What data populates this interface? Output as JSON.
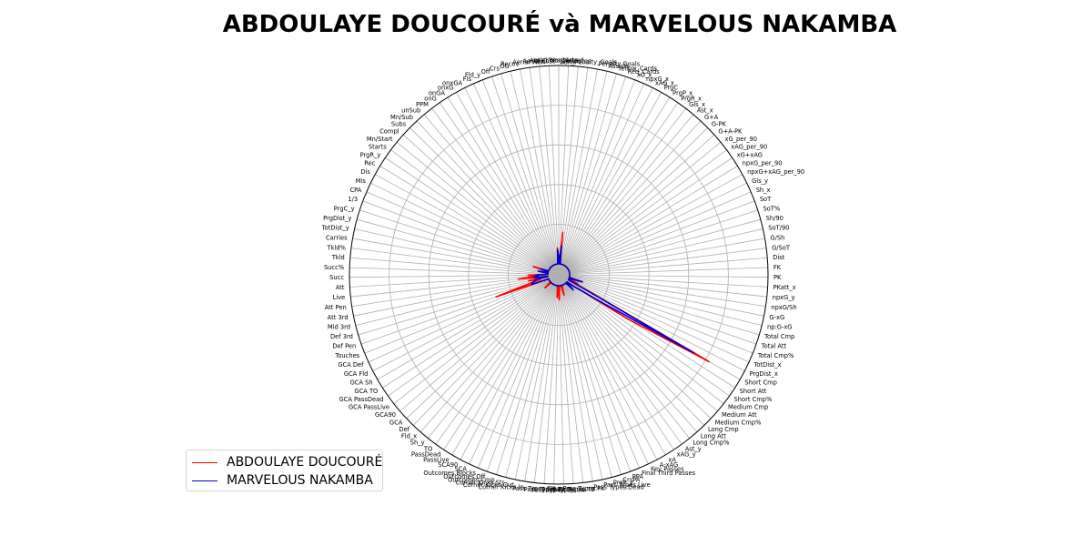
{
  "chart_data": {
    "type": "radar",
    "title": "ABDOULAYE DOUCOURÉ và MARVELOUS NAKAMBA",
    "grid": true,
    "legend_position": "lower-left",
    "categories": [
      "matches_played",
      "starts",
      "minutes",
      "non_Penalty_Goals",
      "Penalty Goals",
      "Assists",
      "Yellow_Cards",
      "Red_Cards",
      "xG_x",
      "npxG_x",
      "xAG_x",
      "PrgC",
      "PrgP_x",
      "PrgR_x",
      "Gls_x",
      "Ast_x",
      "G+A",
      "G-PK",
      "G+A-PK",
      "xG_per_90",
      "xAG_per_90",
      "xG+xAG",
      "npxG_per_90",
      "npxG+xAG_per_90",
      "Gls_y",
      "Sh_x",
      "SoT",
      "SoT%",
      "Sh/90",
      "SoT/90",
      "G/Sh",
      "G/SoT",
      "Dist",
      "FK",
      "PK",
      "PKatt_x",
      "npxG_y",
      "npxG/Sh",
      "G-xG",
      "np:G-xG",
      "Total Cmp",
      "Total Att",
      "Total Cmp%",
      "TotDist_x",
      "PrgDist_x",
      "Short Cmp",
      "Short Att",
      "Short Cmp%",
      "Medium Cmp",
      "Medium Att",
      "Medium Cmp%",
      "Long Cmp",
      "Long Att",
      "Long Cmp%",
      "Ast_y",
      "xAG_y",
      "xA",
      "A-xAG",
      "Key Passes",
      "Final Third Passes",
      "PPA",
      "CrsPA",
      "PrgP_y",
      "Pass Types.Live",
      "Pass Types.Dead",
      "Pass Types.FK",
      "Pass Types.TB",
      "Pass Types.Sw",
      "Pass Types.Crs",
      "Pass Types.TI",
      "Pass Types.CK",
      "Corner Kicks.In",
      "Corner Kicks.Out",
      "Corner Kicks.Str",
      "Outcomes.Cmp",
      "Outcomes.Off",
      "Outcomes.Blocks",
      "SCA",
      "SCA90",
      "PassLive",
      "PassDead",
      "TO",
      "Sh_y",
      "Fld_x",
      "Def",
      "GCA",
      "GCA90",
      "GCA PassLive",
      "GCA PassDead",
      "GCA TO",
      "GCA Sh",
      "GCA Fld",
      "GCA Def",
      "Touches",
      "Def Pen",
      "Def 3rd",
      "Mid 3rd",
      "Att 3rd",
      "Att Pen",
      "Live",
      "Att",
      "Succ",
      "Succ%",
      "Tkld",
      "Tkld%",
      "Carries",
      "TotDist_y",
      "PrgDist_y",
      "PrgC_y",
      "1/3",
      "CPA",
      "Mis",
      "Dis",
      "Rec",
      "PrgR_y",
      "Starts",
      "Mn/Start",
      "Compl",
      "Subs",
      "Mn/Sub",
      "unSub",
      "PPM",
      "onG",
      "onGA",
      "onxG",
      "onxGA",
      "Fls",
      "Fld_y",
      "Off",
      "Crs",
      "OG",
      "Recov",
      "Aerial Won",
      "Aerial Lost",
      "Aerial Won%"
    ],
    "series": [
      {
        "name": "ABDOULAYE DOUCOURÉ",
        "color": "#ff0000",
        "values": {
          "matches_played": 0.03,
          "minutes": 0.16,
          "Total Cmp": 0.05,
          "TotDist_x": 0.05,
          "PrgDist_x": 0.05,
          "Short Cmp": 0.82,
          "Short Att": 0.35,
          "Short Cmp%": 0.08,
          "Medium Cmp": 0.03,
          "Long Cmp": 0.03,
          "PrgP_y": 0.05,
          "Pass Types.Sw": 0.07,
          "Pass Types.TI": 0.06,
          "GCA": 0.04,
          "Def Pen": 0.28,
          "Def 3rd": 0.1,
          "Mid 3rd": 0.04,
          "Att 3rd": 0.1,
          "Live": 0.15,
          "Att": 0.05,
          "Succ": 0.1,
          "PrgC_y": 0.08,
          "Aerial Won%": 0.08
        }
      },
      {
        "name": "MARVELOUS NAKAMBA",
        "color": "#0000cd",
        "values": {
          "matches_played": 0.04,
          "minutes": 0.09,
          "Total Cmp": 0.07,
          "Short Cmp": 0.73,
          "Short Att": 0.2,
          "Short Cmp%": 0.07,
          "Medium Cmp": 0.04,
          "Long Cmp": 0.05,
          "Def Pen": 0.09,
          "Def 3rd": 0.08,
          "Mid 3rd": 0.07,
          "Att 3rd": 0.06,
          "Live": 0.07,
          "Att": 0.05,
          "Succ": 0.06,
          "Carries": 0.05,
          "PrgC_y": 0.04,
          "Aerial Won%": 0.07
        }
      }
    ]
  }
}
